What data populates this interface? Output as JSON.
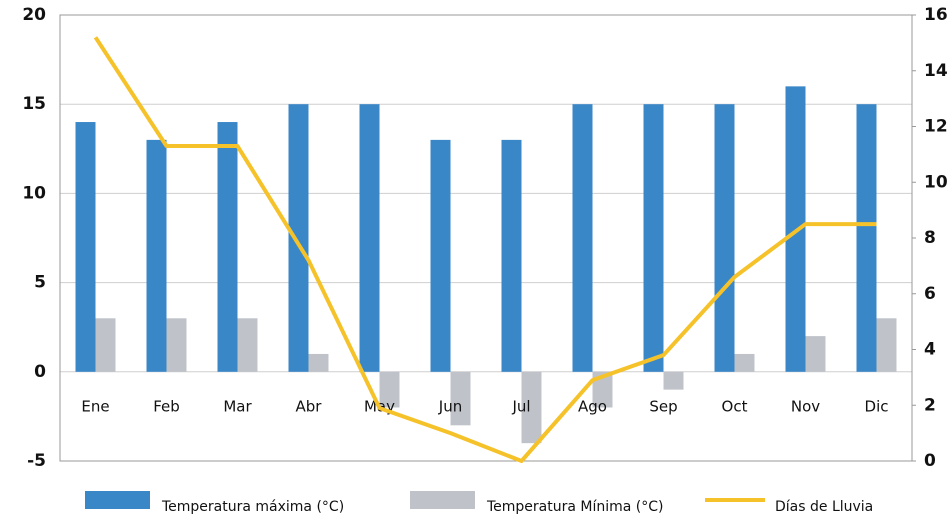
{
  "chart_data": {
    "type": "bar",
    "categories": [
      "Ene",
      "Feb",
      "Mar",
      "Abr",
      "May",
      "Jun",
      "Jul",
      "Ago",
      "Sep",
      "Oct",
      "Nov",
      "Dic"
    ],
    "series": [
      {
        "name": "Temperatura máxima (°C)",
        "color": "#3a87c8",
        "values": [
          14,
          13,
          14,
          15,
          15,
          13,
          13,
          15,
          15,
          15,
          16,
          15
        ]
      },
      {
        "name": "Temperatura Mínima (°C)",
        "color": "#bfc3c9",
        "values": [
          3,
          3,
          3,
          1,
          -2,
          -3,
          -4,
          -2,
          -1,
          1,
          2,
          3
        ]
      },
      {
        "name": "Días de Lluvia",
        "color": "#f5c22a",
        "type": "line",
        "axis": "y2",
        "values": [
          15.2,
          11.3,
          11.3,
          7.2,
          1.9,
          1,
          0,
          2.9,
          3.8,
          6.6,
          8.5,
          8.5
        ]
      }
    ],
    "ylim": [
      -5,
      20
    ],
    "yticks": [
      -5,
      0,
      5,
      10,
      15,
      20
    ],
    "y2lim": [
      0,
      16
    ],
    "y2ticks": [
      0,
      2,
      4,
      6,
      8,
      10,
      12,
      14,
      16
    ],
    "grid": true,
    "legend": "bottom"
  }
}
